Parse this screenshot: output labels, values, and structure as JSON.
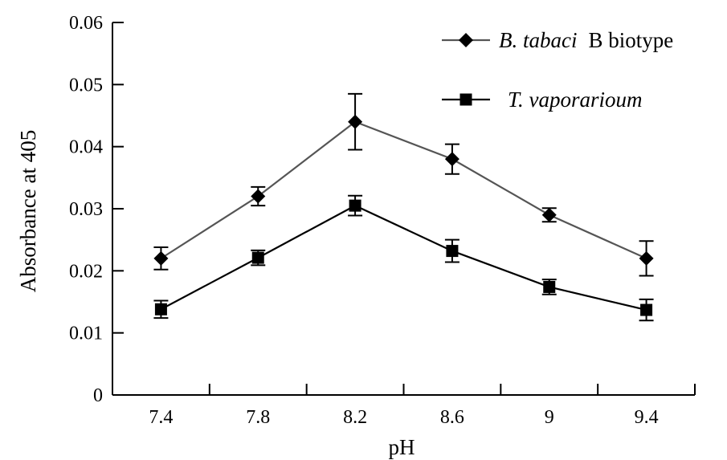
{
  "chart_data": {
    "type": "line",
    "title": "",
    "xlabel": "pH",
    "ylabel": "Absorbance at 405",
    "categories": [
      "7.4",
      "7.8",
      "8.2",
      "8.6",
      "9",
      "9.4"
    ],
    "ylim": [
      0,
      0.06
    ],
    "yticks": [
      "0",
      "0.01",
      "0.02",
      "0.03",
      "0.04",
      "0.05",
      "0.06"
    ],
    "grid": false,
    "legend_position": "top-right",
    "series": [
      {
        "name_italic": "B. tabaci",
        "name_suffix": "B biotype",
        "marker": "diamond",
        "color": "#555555",
        "values": [
          0.022,
          0.032,
          0.044,
          0.038,
          0.029,
          0.022
        ],
        "error": [
          0.0018,
          0.0015,
          0.0045,
          0.0024,
          0.0011,
          0.0028
        ]
      },
      {
        "name_italic": "T. vaporarioum",
        "name_suffix": "",
        "marker": "square",
        "color": "#000000",
        "values": [
          0.0138,
          0.0221,
          0.0305,
          0.0232,
          0.0174,
          0.0137
        ],
        "error": [
          0.0014,
          0.0012,
          0.0016,
          0.0018,
          0.0012,
          0.0017
        ]
      }
    ]
  }
}
